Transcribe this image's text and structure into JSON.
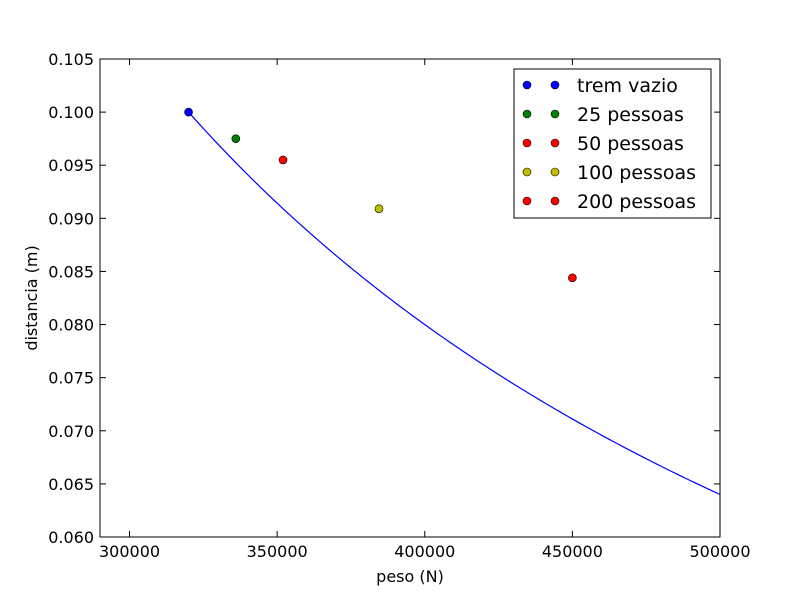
{
  "chart_data": {
    "type": "scatter",
    "xlabel": "peso (N)",
    "ylabel": "distancia (m)",
    "xlim": [
      290000,
      500000
    ],
    "ylim": [
      0.06,
      0.105
    ],
    "x_ticks": [
      300000,
      350000,
      400000,
      450000,
      500000
    ],
    "x_tick_labels": [
      "300000",
      "350000",
      "400000",
      "450000",
      "500000"
    ],
    "y_ticks": [
      0.06,
      0.065,
      0.07,
      0.075,
      0.08,
      0.085,
      0.09,
      0.095,
      0.1,
      0.105
    ],
    "y_tick_labels": [
      "0.060",
      "0.065",
      "0.070",
      "0.075",
      "0.080",
      "0.085",
      "0.090",
      "0.095",
      "0.100",
      "0.105"
    ],
    "grid": false,
    "legend_position": "top-right",
    "curve": {
      "color": "#0000ff",
      "x": [
        320000,
        340000,
        360000,
        380000,
        400000,
        420000,
        440000,
        460000,
        480000,
        500000
      ],
      "y": [
        0.1,
        0.0941,
        0.0889,
        0.0842,
        0.08,
        0.0762,
        0.0727,
        0.0696,
        0.0667,
        0.064
      ]
    },
    "series": [
      {
        "name": "trem vazio",
        "color": "#0000ff",
        "x": [
          320000
        ],
        "y": [
          0.1
        ]
      },
      {
        "name": "25 pessoas",
        "color": "#008000",
        "x": [
          336000
        ],
        "y": [
          0.0975
        ]
      },
      {
        "name": "50 pessoas",
        "color": "#ff0000",
        "x": [
          352000
        ],
        "y": [
          0.0955
        ]
      },
      {
        "name": "100 pessoas",
        "color": "#bfbf00",
        "x": [
          384500
        ],
        "y": [
          0.0909
        ]
      },
      {
        "name": "200 pessoas",
        "color": "#ff0000",
        "x": [
          450000
        ],
        "y": [
          0.0844
        ]
      }
    ]
  }
}
